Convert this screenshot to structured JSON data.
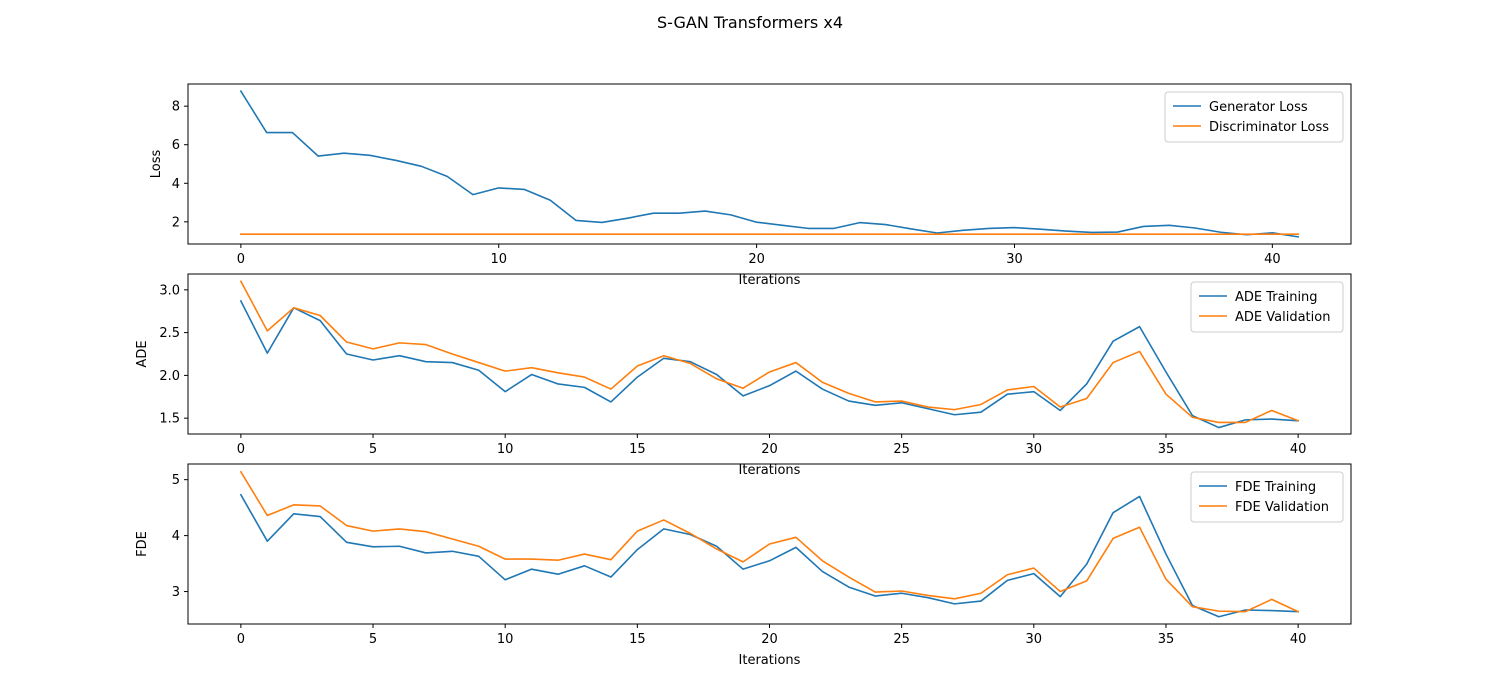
{
  "figure": {
    "title": "S-GAN Transformers x4"
  },
  "colors": {
    "blue": "#1f77b4",
    "orange": "#ff7f0e",
    "axes": "#000000",
    "legend_border": "#cccccc",
    "background": "#ffffff"
  },
  "chart_data": [
    {
      "type": "line",
      "ylabel": "Loss",
      "xlabel": "Iterations",
      "xlim": [
        -2.05,
        43.05
      ],
      "ylim": [
        0.85,
        9.15
      ],
      "xticks": [
        0,
        10,
        20,
        30,
        40
      ],
      "yticks": [
        2,
        4,
        6,
        8
      ],
      "legend_position": "upper right",
      "series": [
        {
          "name": "Generator Loss",
          "color": "#1f77b4",
          "x": [
            0,
            1,
            2,
            3,
            4,
            5,
            6,
            7,
            8,
            9,
            10,
            11,
            12,
            13,
            14,
            15,
            16,
            17,
            18,
            19,
            20,
            21,
            22,
            23,
            24,
            25,
            26,
            27,
            28,
            29,
            30,
            31,
            32,
            33,
            34,
            35,
            36,
            37,
            38,
            39,
            40,
            41
          ],
          "y": [
            8.78,
            6.63,
            6.63,
            5.41,
            5.56,
            5.45,
            5.19,
            4.88,
            4.36,
            3.41,
            3.76,
            3.68,
            3.12,
            2.07,
            1.97,
            2.19,
            2.45,
            2.45,
            2.56,
            2.36,
            1.98,
            1.82,
            1.66,
            1.66,
            1.96,
            1.86,
            1.63,
            1.42,
            1.56,
            1.66,
            1.7,
            1.62,
            1.52,
            1.45,
            1.47,
            1.76,
            1.82,
            1.68,
            1.46,
            1.33,
            1.43,
            1.22
          ]
        },
        {
          "name": "Discriminator Loss",
          "color": "#ff7f0e",
          "x": [
            0,
            1,
            2,
            3,
            4,
            5,
            6,
            7,
            8,
            9,
            10,
            11,
            12,
            13,
            14,
            15,
            16,
            17,
            18,
            19,
            20,
            21,
            22,
            23,
            24,
            25,
            26,
            27,
            28,
            29,
            30,
            31,
            32,
            33,
            34,
            35,
            36,
            37,
            38,
            39,
            40,
            41
          ],
          "y": [
            1.36,
            1.36,
            1.36,
            1.36,
            1.36,
            1.36,
            1.36,
            1.36,
            1.36,
            1.36,
            1.36,
            1.36,
            1.36,
            1.36,
            1.36,
            1.36,
            1.36,
            1.36,
            1.36,
            1.36,
            1.36,
            1.36,
            1.36,
            1.36,
            1.36,
            1.36,
            1.36,
            1.36,
            1.36,
            1.36,
            1.36,
            1.36,
            1.36,
            1.36,
            1.36,
            1.36,
            1.36,
            1.36,
            1.36,
            1.36,
            1.36,
            1.36
          ]
        }
      ]
    },
    {
      "type": "line",
      "ylabel": "ADE",
      "xlabel": "Iterations",
      "xlim": [
        -2.0,
        42.0
      ],
      "ylim": [
        1.315,
        3.185
      ],
      "xticks": [
        0,
        5,
        10,
        15,
        20,
        25,
        30,
        35,
        40
      ],
      "yticks": [
        1.5,
        2.0,
        2.5,
        3.0
      ],
      "legend_position": "upper right",
      "series": [
        {
          "name": "ADE Training",
          "color": "#1f77b4",
          "x": [
            0,
            1,
            2,
            3,
            4,
            5,
            6,
            7,
            8,
            9,
            10,
            11,
            12,
            13,
            14,
            15,
            16,
            17,
            18,
            19,
            20,
            21,
            22,
            23,
            24,
            25,
            26,
            27,
            28,
            29,
            30,
            31,
            32,
            33,
            34,
            35,
            36,
            37,
            38,
            39,
            40
          ],
          "y": [
            2.87,
            2.26,
            2.79,
            2.64,
            2.25,
            2.18,
            2.23,
            2.16,
            2.15,
            2.06,
            1.81,
            2.01,
            1.9,
            1.86,
            1.69,
            1.98,
            2.2,
            2.16,
            2.01,
            1.76,
            1.88,
            2.05,
            1.84,
            1.7,
            1.65,
            1.68,
            1.61,
            1.54,
            1.57,
            1.78,
            1.81,
            1.59,
            1.9,
            2.4,
            2.57,
            2.04,
            1.53,
            1.39,
            1.48,
            1.49,
            1.47
          ]
        },
        {
          "name": "ADE Validation",
          "color": "#ff7f0e",
          "x": [
            0,
            1,
            2,
            3,
            4,
            5,
            6,
            7,
            8,
            9,
            10,
            11,
            12,
            13,
            14,
            15,
            16,
            17,
            18,
            19,
            20,
            21,
            22,
            23,
            24,
            25,
            26,
            27,
            28,
            29,
            30,
            31,
            32,
            33,
            34,
            35,
            36,
            37,
            38,
            39,
            40
          ],
          "y": [
            3.1,
            2.52,
            2.79,
            2.7,
            2.39,
            2.31,
            2.38,
            2.36,
            2.25,
            2.15,
            2.05,
            2.09,
            2.03,
            1.98,
            1.84,
            2.11,
            2.23,
            2.14,
            1.96,
            1.85,
            2.04,
            2.15,
            1.92,
            1.79,
            1.69,
            1.7,
            1.63,
            1.6,
            1.66,
            1.83,
            1.87,
            1.63,
            1.73,
            2.15,
            2.28,
            1.78,
            1.51,
            1.45,
            1.45,
            1.59,
            1.47
          ]
        }
      ]
    },
    {
      "type": "line",
      "ylabel": "FDE",
      "xlabel": "Iterations",
      "xlim": [
        -2.0,
        42.0
      ],
      "ylim": [
        2.42,
        5.28
      ],
      "xticks": [
        0,
        5,
        10,
        15,
        20,
        25,
        30,
        35,
        40
      ],
      "yticks": [
        3,
        4,
        5
      ],
      "legend_position": "upper right",
      "series": [
        {
          "name": "FDE Training",
          "color": "#1f77b4",
          "x": [
            0,
            1,
            2,
            3,
            4,
            5,
            6,
            7,
            8,
            9,
            10,
            11,
            12,
            13,
            14,
            15,
            16,
            17,
            18,
            19,
            20,
            21,
            22,
            23,
            24,
            25,
            26,
            27,
            28,
            29,
            30,
            31,
            32,
            33,
            34,
            35,
            36,
            37,
            38,
            39,
            40
          ],
          "y": [
            4.73,
            3.9,
            4.39,
            4.34,
            3.88,
            3.8,
            3.81,
            3.69,
            3.72,
            3.63,
            3.21,
            3.4,
            3.31,
            3.46,
            3.26,
            3.75,
            4.12,
            4.02,
            3.81,
            3.4,
            3.55,
            3.79,
            3.36,
            3.08,
            2.92,
            2.97,
            2.89,
            2.78,
            2.83,
            3.2,
            3.32,
            2.91,
            3.49,
            4.41,
            4.7,
            3.67,
            2.75,
            2.55,
            2.67,
            2.66,
            2.64
          ]
        },
        {
          "name": "FDE Validation",
          "color": "#ff7f0e",
          "x": [
            0,
            1,
            2,
            3,
            4,
            5,
            6,
            7,
            8,
            9,
            10,
            11,
            12,
            13,
            14,
            15,
            16,
            17,
            18,
            19,
            20,
            21,
            22,
            23,
            24,
            25,
            26,
            27,
            28,
            29,
            30,
            31,
            32,
            33,
            34,
            35,
            36,
            37,
            38,
            39,
            40
          ],
          "y": [
            5.14,
            4.36,
            4.55,
            4.53,
            4.18,
            4.08,
            4.12,
            4.07,
            3.94,
            3.81,
            3.58,
            3.58,
            3.56,
            3.67,
            3.57,
            4.08,
            4.28,
            4.04,
            3.76,
            3.53,
            3.85,
            3.97,
            3.55,
            3.26,
            2.99,
            3.01,
            2.93,
            2.87,
            2.97,
            3.3,
            3.42,
            3.0,
            3.19,
            3.95,
            4.15,
            3.22,
            2.73,
            2.65,
            2.64,
            2.86,
            2.64
          ]
        }
      ]
    }
  ]
}
